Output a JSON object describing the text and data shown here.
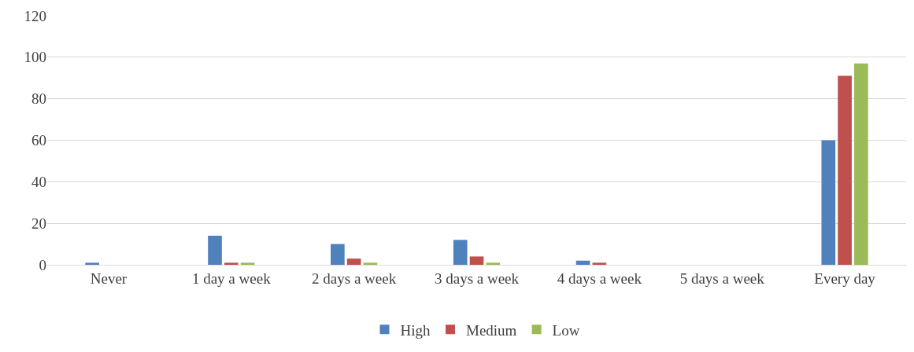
{
  "chart_data": {
    "type": "bar",
    "categories": [
      "Never",
      "1 day a week",
      "2 days a week",
      "3 days a week",
      "4 days a week",
      "5 days a week",
      "Every day"
    ],
    "series": [
      {
        "name": "High",
        "color": "#4f81bd",
        "values": [
          1,
          14,
          10,
          12,
          2,
          0,
          60
        ]
      },
      {
        "name": "Medium",
        "color": "#c0504d",
        "values": [
          0,
          1,
          3,
          4,
          1,
          0,
          91
        ]
      },
      {
        "name": "Low",
        "color": "#9bbb59",
        "values": [
          0,
          1,
          1,
          1,
          0,
          0,
          97
        ]
      }
    ],
    "ylim": [
      0,
      120
    ],
    "yticks": [
      0,
      20,
      40,
      60,
      80,
      100,
      120
    ],
    "grid": "y",
    "legend": "bottom"
  }
}
